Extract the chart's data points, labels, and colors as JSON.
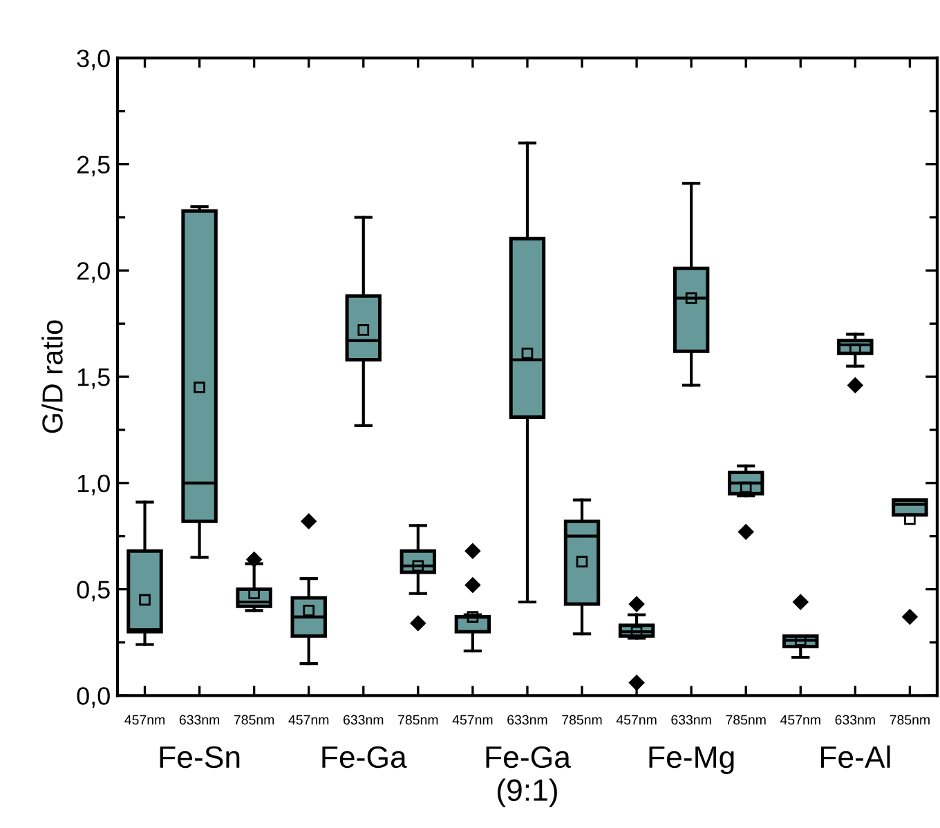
{
  "chart_data": {
    "type": "box",
    "ylabel": "G/D ratio",
    "categories": [
      "457nm",
      "633nm",
      "785nm",
      "457nm",
      "633nm",
      "785nm",
      "457nm",
      "633nm",
      "785nm",
      "457nm",
      "633nm",
      "785nm",
      "457nm",
      "633nm",
      "785nm"
    ],
    "annotations": [
      "Fe-Sn",
      "Fe-Ga",
      "Fe-Ga\n(9:1)",
      "Fe-Mg",
      "Fe-Al"
    ],
    "color": "#669999",
    "ylim": [
      0,
      3.0
    ],
    "yticks": [
      {
        "value": 0,
        "label": "0,0"
      },
      {
        "value": 0.5,
        "label": "0,5"
      },
      {
        "value": 1.0,
        "label": "1,0"
      },
      {
        "value": 1.5,
        "label": "1,5"
      },
      {
        "value": 2.0,
        "label": "2,0"
      },
      {
        "value": 2.5,
        "label": "2,5"
      },
      {
        "value": 3.0,
        "label": "3,0"
      }
    ],
    "boxes": [
      {
        "low": 0.24,
        "q1": 0.3,
        "median": 0.31,
        "q3": 0.68,
        "high": 0.91,
        "mean": 0.45
      },
      {
        "low": 0.65,
        "q1": 0.82,
        "median": 1.0,
        "q3": 2.28,
        "high": 2.3,
        "mean": 1.45
      },
      {
        "low": 0.4,
        "q1": 0.42,
        "median": 0.44,
        "q3": 0.5,
        "high": 0.62,
        "mean": 0.48,
        "outliers": [
          0.64
        ]
      },
      {
        "low": 0.15,
        "q1": 0.28,
        "median": 0.37,
        "q3": 0.46,
        "high": 0.55,
        "mean": 0.4,
        "outliers": [
          0.82
        ]
      },
      {
        "low": 1.27,
        "q1": 1.58,
        "median": 1.67,
        "q3": 1.88,
        "high": 2.25,
        "mean": 1.72
      },
      {
        "low": 0.48,
        "q1": 0.58,
        "median": 0.61,
        "q3": 0.68,
        "high": 0.8,
        "mean": 0.61,
        "outliers": [
          0.34
        ]
      },
      {
        "low": 0.21,
        "q1": 0.3,
        "median": 0.37,
        "q3": 0.37,
        "high": 0.38,
        "mean": 0.37,
        "outliers": [
          0.68,
          0.52
        ]
      },
      {
        "low": 0.44,
        "q1": 1.31,
        "median": 1.58,
        "q3": 2.15,
        "high": 2.6,
        "mean": 1.61
      },
      {
        "low": 0.29,
        "q1": 0.43,
        "median": 0.75,
        "q3": 0.82,
        "high": 0.92,
        "mean": 0.63
      },
      {
        "low": 0.27,
        "q1": 0.28,
        "median": 0.3,
        "q3": 0.33,
        "high": 0.38,
        "mean": 0.3,
        "outliers": [
          0.43,
          0.06
        ]
      },
      {
        "low": 1.46,
        "q1": 1.62,
        "median": 1.87,
        "q3": 2.01,
        "high": 2.41,
        "mean": 1.87
      },
      {
        "low": 0.94,
        "q1": 0.95,
        "median": 1.0,
        "q3": 1.05,
        "high": 1.08,
        "mean": 0.98,
        "outliers": [
          0.77
        ]
      },
      {
        "low": 0.18,
        "q1": 0.23,
        "median": 0.26,
        "q3": 0.28,
        "high": 0.28,
        "mean": 0.26,
        "outliers": [
          0.44
        ]
      },
      {
        "low": 1.55,
        "q1": 1.61,
        "median": 1.65,
        "q3": 1.67,
        "high": 1.7,
        "mean": 1.63,
        "outliers": [
          1.46
        ]
      },
      {
        "low": 0.85,
        "q1": 0.85,
        "median": 0.9,
        "q3": 0.92,
        "high": 0.92,
        "mean": 0.83,
        "outliers": [
          0.37
        ]
      }
    ]
  }
}
